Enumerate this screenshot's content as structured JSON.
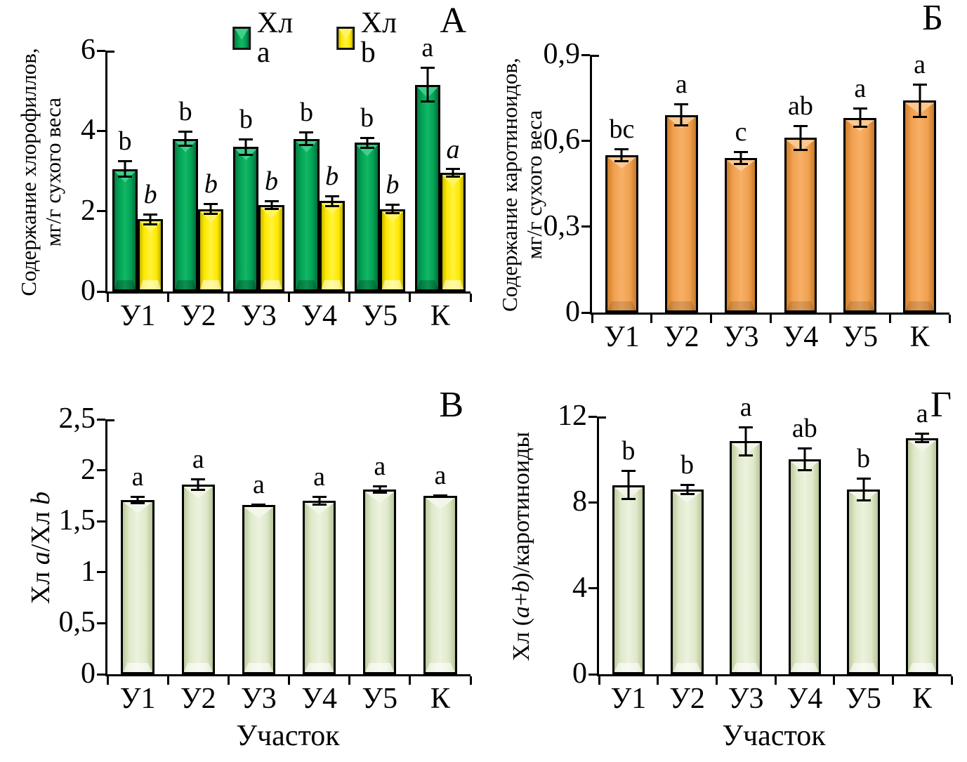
{
  "colors": {
    "chl_a_green": "#0AA157",
    "chl_b_yellow": "#FFEE00",
    "carotenoid_orange": "#F2A355",
    "ratio_pale_green": "#E3ECCF",
    "outline": "#000000"
  },
  "chart_data": [
    {
      "id": "A",
      "panel_letter": "А",
      "type": "bar",
      "title": "",
      "ylabel_lines": [
        [
          {
            "t": "Содержание хлорофиллов,"
          }
        ],
        [
          {
            "t": "мг/г сухого веса"
          }
        ]
      ],
      "xlabel": "",
      "categories": [
        "У1",
        "У2",
        "У3",
        "У4",
        "У5",
        "К"
      ],
      "ymax": 6,
      "yticks": [
        0,
        2,
        4,
        6
      ],
      "ytick_labels": [
        "0",
        "2",
        "4",
        "6"
      ],
      "grid": false,
      "legend_position": "top",
      "legend": [
        {
          "label": "Хл a",
          "palette": "green"
        },
        {
          "label": "Хл b",
          "palette": "yellow"
        }
      ],
      "series": [
        {
          "name": "Хл a",
          "palette": "green",
          "color": "#0AA157",
          "values": [
            3.05,
            3.8,
            3.6,
            3.8,
            3.7,
            5.15
          ],
          "err": [
            0.22,
            0.2,
            0.22,
            0.18,
            0.15,
            0.45
          ],
          "letters": [
            "b",
            "b",
            "b",
            "b",
            "b",
            "a"
          ],
          "letters_italic": false
        },
        {
          "name": "Хл b",
          "palette": "yellow",
          "color": "#FFEE00",
          "values": [
            1.8,
            2.05,
            2.15,
            2.25,
            2.05,
            2.95
          ],
          "err": [
            0.15,
            0.15,
            0.12,
            0.15,
            0.13,
            0.12
          ],
          "letters": [
            "b",
            "b",
            "b",
            "b",
            "b",
            "a"
          ],
          "letters_italic": true
        }
      ]
    },
    {
      "id": "B",
      "panel_letter": "Б",
      "type": "bar",
      "title": "",
      "ylabel_lines": [
        [
          {
            "t": "Содержание каротиноидов,"
          }
        ],
        [
          {
            "t": "мг/г сухого веса"
          }
        ]
      ],
      "xlabel": "",
      "categories": [
        "У1",
        "У2",
        "У3",
        "У4",
        "У5",
        "К"
      ],
      "ymax": 0.9,
      "yticks": [
        0,
        0.3,
        0.6,
        0.9
      ],
      "ytick_labels": [
        "0",
        "0,3",
        "0,6",
        "0,9"
      ],
      "grid": false,
      "series": [
        {
          "name": "каротиноиды",
          "palette": "orange",
          "color": "#F2A355",
          "values": [
            0.55,
            0.69,
            0.54,
            0.61,
            0.68,
            0.74
          ],
          "err": [
            0.025,
            0.04,
            0.025,
            0.045,
            0.035,
            0.06
          ],
          "letters": [
            "bc",
            "a",
            "c",
            "ab",
            "a",
            "a"
          ],
          "letters_italic": false
        }
      ]
    },
    {
      "id": "V",
      "panel_letter": "В",
      "type": "bar",
      "title": "",
      "ylabel_lines": [
        [
          {
            "t": "Хл "
          },
          {
            "t": "a",
            "i": true
          },
          {
            "t": "/Хл "
          },
          {
            "t": "b",
            "i": true
          }
        ]
      ],
      "xlabel": "Участок",
      "categories": [
        "У1",
        "У2",
        "У3",
        "У4",
        "У5",
        "К"
      ],
      "ymax": 2.5,
      "yticks": [
        0,
        0.5,
        1,
        1.5,
        2,
        2.5
      ],
      "ytick_labels": [
        "0",
        "0,5",
        "1",
        "1,5",
        "2",
        "2,5"
      ],
      "grid": false,
      "series": [
        {
          "name": "Хл a/Хл b",
          "palette": "pale",
          "color": "#E3ECCF",
          "values": [
            1.71,
            1.86,
            1.66,
            1.7,
            1.81,
            1.75
          ],
          "err": [
            0.04,
            0.06,
            0.015,
            0.05,
            0.04,
            0.015
          ],
          "letters": [
            "a",
            "a",
            "a",
            "a",
            "a",
            "a"
          ],
          "letters_italic": false
        }
      ]
    },
    {
      "id": "G",
      "panel_letter": "Г",
      "type": "bar",
      "title": "",
      "ylabel_lines": [
        [
          {
            "t": "Хл ("
          },
          {
            "t": "a",
            "i": true
          },
          {
            "t": "+"
          },
          {
            "t": "b",
            "i": true
          },
          {
            "t": ")/каротиноиды"
          }
        ]
      ],
      "xlabel": "Участок",
      "categories": [
        "У1",
        "У2",
        "У3",
        "У4",
        "У5",
        "К"
      ],
      "ymax": 12,
      "yticks": [
        0,
        4,
        8,
        12
      ],
      "ytick_labels": [
        "0",
        "4",
        "8",
        "12"
      ],
      "grid": false,
      "series": [
        {
          "name": "Хл (a+b)/каротиноиды",
          "palette": "pale",
          "color": "#E3ECCF",
          "values": [
            8.8,
            8.6,
            10.85,
            10.0,
            8.6,
            11.0
          ],
          "err": [
            0.7,
            0.25,
            0.7,
            0.55,
            0.55,
            0.25
          ],
          "letters": [
            "b",
            "b",
            "a",
            "ab",
            "b",
            "a"
          ],
          "letters_italic": false
        }
      ]
    }
  ]
}
